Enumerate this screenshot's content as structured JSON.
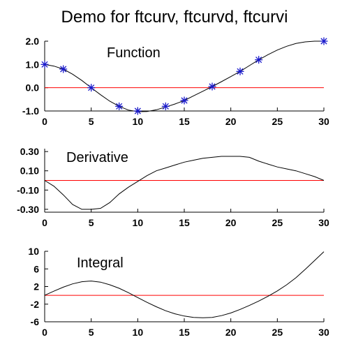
{
  "title": "Demo for ftcurv, ftcurvd, ftcurvi",
  "chart_data": [
    {
      "type": "line",
      "label": "Function",
      "x_ticks": [
        "0",
        "5",
        "10",
        "15",
        "20",
        "25",
        "30"
      ],
      "y_ticks": [
        "2.0",
        "1.0",
        "0.0",
        "-1.0"
      ],
      "xlim": [
        0,
        30
      ],
      "ylim": [
        -1.0,
        2.0
      ],
      "reference_line_y": 0,
      "curve": {
        "x": [
          0,
          1,
          2,
          3,
          4,
          5,
          6,
          7,
          8,
          9,
          10,
          11,
          12,
          13,
          14,
          15,
          16,
          17,
          18,
          19,
          20,
          21,
          22,
          23,
          24,
          25,
          26,
          27,
          28,
          29,
          30
        ],
        "y": [
          1.0,
          0.93,
          0.8,
          0.58,
          0.31,
          0.0,
          -0.3,
          -0.58,
          -0.8,
          -0.96,
          -1.03,
          -1.02,
          -0.95,
          -0.83,
          -0.7,
          -0.55,
          -0.35,
          -0.15,
          0.05,
          0.26,
          0.48,
          0.7,
          0.95,
          1.2,
          1.42,
          1.62,
          1.78,
          1.9,
          1.97,
          2.0,
          2.0
        ]
      },
      "markers": {
        "x": [
          0,
          2,
          5,
          8,
          10,
          13,
          15,
          18,
          21,
          23,
          30
        ],
        "y": [
          1.0,
          0.8,
          0.0,
          -0.8,
          -1.0,
          -0.8,
          -0.55,
          0.05,
          0.7,
          1.2,
          2.0
        ]
      }
    },
    {
      "type": "line",
      "label": "Derivative",
      "x_ticks": [
        "0",
        "5",
        "10",
        "15",
        "20",
        "25",
        "30"
      ],
      "y_ticks": [
        "0.30",
        "0.10",
        "-0.10",
        "-0.30"
      ],
      "xlim": [
        0,
        30
      ],
      "ylim": [
        -0.33,
        0.33
      ],
      "reference_line_y": 0,
      "curve": {
        "x": [
          0,
          1,
          2,
          3,
          4,
          5,
          6,
          7,
          8,
          9,
          10,
          11,
          12,
          13,
          14,
          15,
          16,
          17,
          18,
          19,
          20,
          21,
          22,
          23,
          24,
          25,
          26,
          27,
          28,
          29,
          30
        ],
        "y": [
          0.0,
          -0.06,
          -0.15,
          -0.25,
          -0.3,
          -0.3,
          -0.29,
          -0.23,
          -0.14,
          -0.07,
          -0.01,
          0.05,
          0.1,
          0.13,
          0.16,
          0.19,
          0.21,
          0.23,
          0.24,
          0.25,
          0.25,
          0.25,
          0.24,
          0.2,
          0.17,
          0.14,
          0.12,
          0.1,
          0.07,
          0.04,
          0.0
        ]
      }
    },
    {
      "type": "line",
      "label": "Integral",
      "x_ticks": [
        "0",
        "5",
        "10",
        "15",
        "20",
        "25",
        "30"
      ],
      "y_ticks": [
        "10",
        "6",
        "2",
        "-2",
        "-6"
      ],
      "xlim": [
        0,
        30
      ],
      "ylim": [
        -6,
        10
      ],
      "reference_line_y": 0,
      "curve": {
        "x": [
          0,
          1,
          2,
          3,
          4,
          5,
          6,
          7,
          8,
          9,
          10,
          11,
          12,
          13,
          14,
          15,
          16,
          17,
          18,
          19,
          20,
          21,
          22,
          23,
          24,
          25,
          26,
          27,
          28,
          29,
          30
        ],
        "y": [
          0.0,
          0.95,
          1.85,
          2.6,
          3.1,
          3.25,
          3.0,
          2.4,
          1.6,
          0.6,
          -0.5,
          -1.6,
          -2.6,
          -3.5,
          -4.2,
          -4.7,
          -5.0,
          -5.1,
          -5.0,
          -4.6,
          -4.0,
          -3.2,
          -2.3,
          -1.3,
          -0.2,
          1.0,
          2.4,
          4.0,
          5.9,
          7.9,
          9.9
        ]
      }
    }
  ],
  "colors": {
    "curve": "#000000",
    "reference_line": "#ff0000",
    "markers": "#1a1acc",
    "axes": "#000000"
  }
}
